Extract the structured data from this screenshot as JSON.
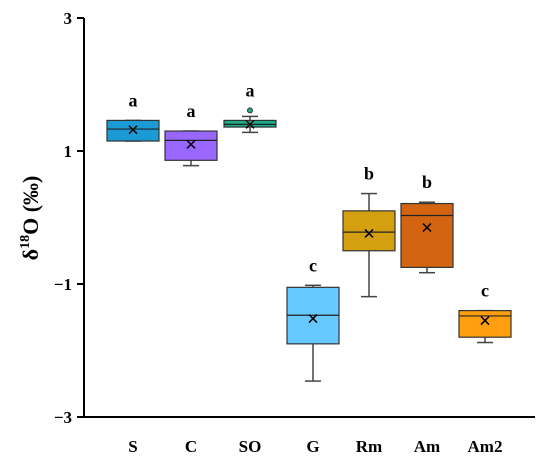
{
  "chart_data": {
    "type": "box",
    "ylabel_main": "δ",
    "ylabel_sup": "18",
    "ylabel_rest": "O (‰)",
    "ylim": [
      -3,
      3
    ],
    "yticks": [
      {
        "value": 3,
        "label": "3"
      },
      {
        "value": 1,
        "label": "1"
      },
      {
        "value": -1,
        "label": "−1"
      },
      {
        "value": -3,
        "label": "−3"
      }
    ],
    "grid": false,
    "boxes": [
      {
        "category": "S",
        "color": "#1a9bd5",
        "whisker_low": 1.15,
        "q1": 1.15,
        "median": 1.33,
        "q3": 1.46,
        "whisker_high": 1.46,
        "mean": 1.32,
        "outliers": [],
        "sig": "a"
      },
      {
        "category": "C",
        "color": "#9966ff",
        "whisker_low": 0.78,
        "q1": 0.86,
        "median": 1.16,
        "q3": 1.3,
        "whisker_high": 1.3,
        "mean": 1.1,
        "outliers": [],
        "sig": "a"
      },
      {
        "category": "SO",
        "color": "#1aab8a",
        "whisker_low": 1.28,
        "q1": 1.36,
        "median": 1.4,
        "q3": 1.46,
        "whisker_high": 1.52,
        "mean": 1.4,
        "outliers": [
          1.61
        ],
        "sig": "a"
      },
      {
        "category": "G",
        "color": "#66c8ff",
        "whisker_low": -2.46,
        "q1": -1.9,
        "median": -1.47,
        "q3": -1.05,
        "whisker_high": -1.02,
        "mean": -1.52,
        "outliers": [],
        "sig": "c"
      },
      {
        "category": "Rm",
        "color": "#d4a010",
        "whisker_low": -1.19,
        "q1": -0.5,
        "median": -0.22,
        "q3": 0.1,
        "whisker_high": 0.36,
        "mean": -0.24,
        "outliers": [],
        "sig": "b"
      },
      {
        "category": "Am",
        "color": "#d26412",
        "whisker_low": -0.83,
        "q1": -0.75,
        "median": 0.03,
        "q3": 0.21,
        "whisker_high": 0.23,
        "mean": -0.15,
        "outliers": [],
        "sig": "b"
      },
      {
        "category": "Am2",
        "color": "#ff9e0e",
        "whisker_low": -1.88,
        "q1": -1.8,
        "median": -1.48,
        "q3": -1.4,
        "whisker_high": -1.4,
        "mean": -1.55,
        "outliers": [],
        "sig": "c"
      }
    ]
  }
}
